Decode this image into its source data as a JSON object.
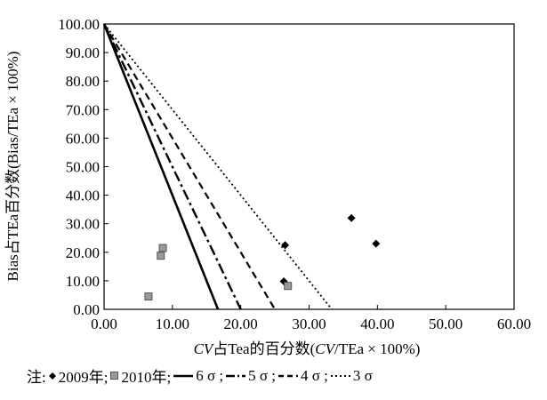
{
  "chart_data": {
    "type": "scatter",
    "title": "",
    "xlabel_prefix": "CV",
    "xlabel_mid": "占Tea的百分数(",
    "xlabel_cv": "CV",
    "xlabel_suffix": "/TEa × 100%)",
    "ylabel": "Bias占TEa百分数(Bias/TEa × 100%)",
    "xlim": [
      0,
      60
    ],
    "ylim": [
      0,
      100
    ],
    "xticks": [
      "0.00",
      "10.00",
      "20.00",
      "30.00",
      "40.00",
      "50.00",
      "60.00"
    ],
    "yticks": [
      "0.00",
      "10.00",
      "20.00",
      "30.00",
      "40.00",
      "50.00",
      "60.00",
      "70.00",
      "80.00",
      "90.00",
      "100.00"
    ],
    "grid": false,
    "series": [
      {
        "name": "2009年",
        "kind": "points",
        "marker": "diamond",
        "color": "#000000",
        "points": [
          [
            26.5,
            22.5
          ],
          [
            26.3,
            9.8
          ],
          [
            36.2,
            32.0
          ],
          [
            39.8,
            23.0
          ]
        ]
      },
      {
        "name": "2010年",
        "kind": "points",
        "marker": "square",
        "color": "#999999",
        "points": [
          [
            6.5,
            4.5
          ],
          [
            8.3,
            18.8
          ],
          [
            8.6,
            21.5
          ],
          [
            26.9,
            8.2
          ]
        ]
      },
      {
        "name": "6 σ",
        "kind": "line",
        "style": "solid",
        "x_intercept": 16.67
      },
      {
        "name": "5 σ",
        "kind": "line",
        "style": "dashdot",
        "x_intercept": 20.0
      },
      {
        "name": "4 σ",
        "kind": "line",
        "style": "dashed",
        "x_intercept": 25.0
      },
      {
        "name": "3 σ",
        "kind": "line",
        "style": "dotted",
        "x_intercept": 33.33
      }
    ]
  },
  "legend": {
    "note": "注:",
    "item_2009": "2009年;",
    "item_2010": "2010年;",
    "item_6s": "6 σ ;",
    "item_5s": "5 σ ;",
    "item_4s": "4 σ ;",
    "item_3s": "3 σ"
  }
}
